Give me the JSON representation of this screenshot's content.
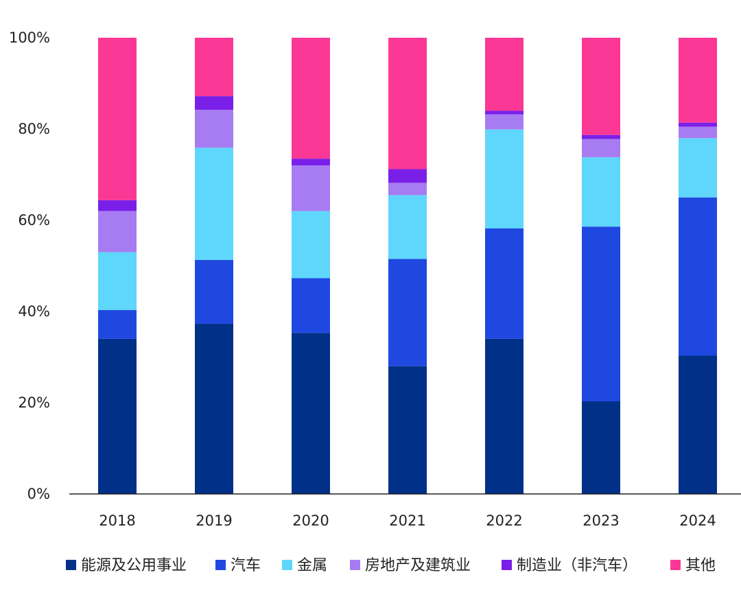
{
  "chart_data": {
    "type": "bar",
    "stacked": true,
    "title": "",
    "xlabel": "",
    "ylabel": "",
    "categories": [
      "2018",
      "2019",
      "2020",
      "2021",
      "2022",
      "2023",
      "2024"
    ],
    "y_ticks": [
      "0%",
      "20%",
      "40%",
      "60%",
      "80%",
      "100%"
    ],
    "ylim": [
      0,
      100
    ],
    "grid": false,
    "legend_position": "bottom",
    "series": [
      {
        "name": "能源及公用事业",
        "color": "#003087",
        "values": [
          34,
          37.3,
          35.3,
          28,
          34,
          20.3,
          30.3
        ]
      },
      {
        "name": "汽车",
        "color": "#1f48e0",
        "values": [
          6.3,
          14,
          12,
          23.5,
          24.2,
          38.3,
          34.7
        ]
      },
      {
        "name": "金属",
        "color": "#5fd6fc",
        "values": [
          12.7,
          24.6,
          14.7,
          14,
          21.7,
          15.2,
          13
        ]
      },
      {
        "name": "房地产及建筑业",
        "color": "#a77cf2",
        "values": [
          9,
          8.3,
          10,
          2.7,
          3.3,
          4,
          2.5
        ]
      },
      {
        "name": "制造业（非汽车）",
        "color": "#7a1fe8",
        "values": [
          2.4,
          3,
          1.5,
          3,
          0.8,
          0.9,
          0.9
        ]
      },
      {
        "name": "其他",
        "color": "#fb3895",
        "values": [
          35.6,
          12.8,
          26.5,
          28.8,
          16,
          21.3,
          18.6
        ]
      }
    ]
  }
}
